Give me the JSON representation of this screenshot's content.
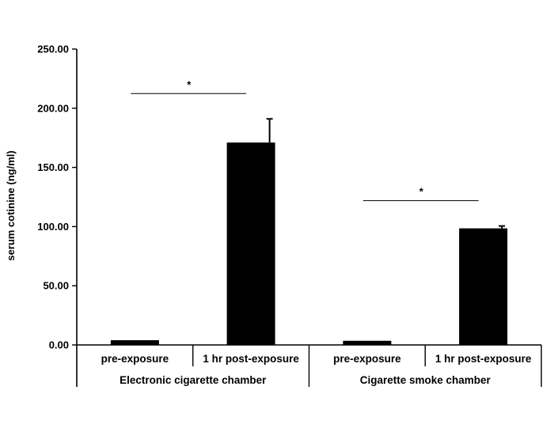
{
  "chart_data": {
    "type": "bar",
    "title": "",
    "ylabel": "serum cotinine (ng/ml)",
    "ylim": [
      0,
      250
    ],
    "yticks": [
      "0.00",
      "50.00",
      "100.00",
      "150.00",
      "200.00",
      "250.00"
    ],
    "grid": false,
    "groups": [
      {
        "name": "Electronic cigarette chamber",
        "categories": [
          "pre-exposure",
          "1 hr post-exposure"
        ],
        "values": [
          4,
          171
        ],
        "errors": [
          0.5,
          20
        ],
        "significance": "*"
      },
      {
        "name": "Cigarette smoke chamber",
        "categories": [
          "pre-exposure",
          "1 hr post-exposure"
        ],
        "values": [
          3.5,
          98.5
        ],
        "errors": [
          0.5,
          2
        ],
        "significance": "*"
      }
    ],
    "bar_color": "#000000"
  }
}
